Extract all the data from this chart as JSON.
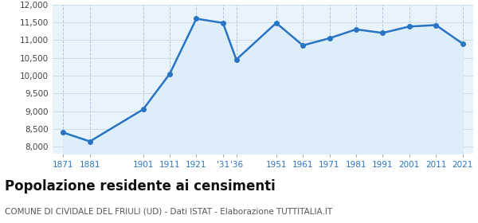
{
  "years": [
    1871,
    1881,
    1901,
    1911,
    1921,
    1931,
    1936,
    1951,
    1961,
    1971,
    1981,
    1991,
    2001,
    2011,
    2021
  ],
  "population": [
    8400,
    8150,
    9050,
    10050,
    11600,
    11480,
    10450,
    11480,
    10850,
    11050,
    11300,
    11200,
    11380,
    11420,
    10900
  ],
  "x_tick_labels": [
    "1871",
    "1881",
    "1901",
    "1911",
    "1921",
    "'31",
    "'36",
    "1951",
    "1961",
    "1971",
    "1981",
    "1991",
    "2001",
    "2011",
    "2021"
  ],
  "ylim": [
    7800,
    12000
  ],
  "yticks": [
    8000,
    8500,
    9000,
    9500,
    10000,
    10500,
    11000,
    11500,
    12000
  ],
  "line_color": "#2874C5",
  "fill_color": "#ddeef8",
  "marker_color": "#2874C5",
  "bg_color": "#e8f3fb",
  "title": "Popolazione residente ai censimenti",
  "subtitle": "COMUNE DI CIVIDALE DEL FRIULI (UD) - Dati ISTAT - Elaborazione TUTTITALIA.IT",
  "title_fontsize": 12,
  "subtitle_fontsize": 7.5,
  "tick_color": "#2874C5",
  "vgrid_color": "#b0c8e0",
  "hgrid_color": "#c8dcea"
}
